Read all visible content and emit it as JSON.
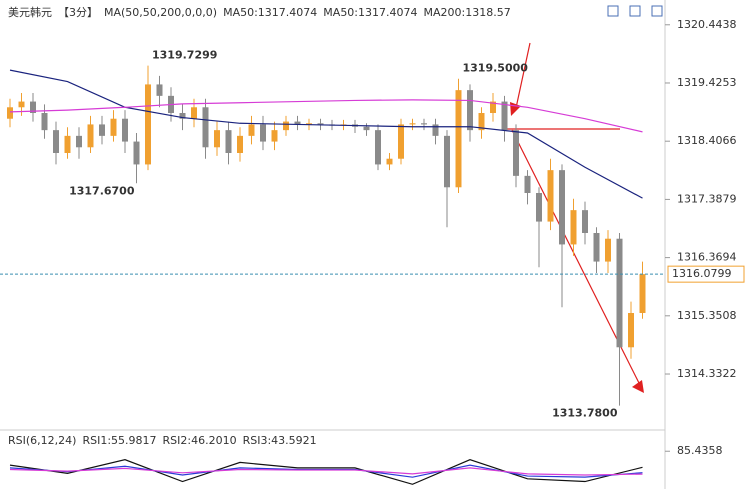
{
  "chart_data": {
    "type": "candlestick",
    "title": "美元韩元",
    "period": "【3分】",
    "indicator": "MA(50,50,200,0,0,0)",
    "legend": [
      {
        "text": "MA50:1317.4074",
        "color": "#1a237e"
      },
      {
        "text": "MA50:1317.4074",
        "color": "#1a237e"
      },
      {
        "text": "MA200:1318.57",
        "color": "#d63cd6"
      }
    ],
    "open": [
      1318.8,
      1319.0,
      1319.1,
      1318.9,
      1318.6,
      1318.2,
      1318.5,
      1318.3,
      1318.7,
      1318.5,
      1318.8,
      1318.4,
      1318.0,
      1319.4,
      1319.2,
      1318.9,
      1318.8,
      1319.0,
      1318.3,
      1318.6,
      1318.2,
      1318.5,
      1318.7,
      1318.4,
      1318.6,
      1318.75,
      1318.7,
      1318.72,
      1318.7,
      1318.68,
      1318.7,
      1318.66,
      1318.6,
      1318.0,
      1318.1,
      1318.7,
      1318.72,
      1318.7,
      1318.5,
      1317.6,
      1319.3,
      1318.6,
      1318.9,
      1319.1,
      1318.6,
      1317.8,
      1317.5,
      1317.0,
      1317.9,
      1316.6,
      1317.2,
      1316.8,
      1316.3,
      1316.7,
      1314.8,
      1315.4
    ],
    "high": [
      1319.15,
      1319.25,
      1319.25,
      1319.05,
      1318.75,
      1318.65,
      1318.65,
      1318.85,
      1318.85,
      1318.95,
      1318.95,
      1318.55,
      1319.7299,
      1319.55,
      1319.35,
      1319.05,
      1319.15,
      1319.15,
      1318.75,
      1318.75,
      1318.65,
      1318.85,
      1318.85,
      1318.75,
      1318.85,
      1318.85,
      1318.8,
      1318.8,
      1318.78,
      1318.78,
      1318.78,
      1318.72,
      1318.7,
      1318.2,
      1318.8,
      1318.8,
      1318.8,
      1318.8,
      1318.6,
      1319.5,
      1319.4,
      1319.0,
      1319.25,
      1319.2,
      1318.7,
      1317.9,
      1317.6,
      1318.1,
      1318.0,
      1317.4,
      1317.35,
      1316.9,
      1316.85,
      1316.8,
      1315.6,
      1316.3
    ],
    "low": [
      1318.65,
      1318.85,
      1318.75,
      1318.45,
      1318.0,
      1318.1,
      1318.1,
      1318.2,
      1318.35,
      1318.4,
      1318.2,
      1317.67,
      1317.9,
      1319.0,
      1318.75,
      1318.6,
      1318.65,
      1318.1,
      1318.15,
      1318.0,
      1318.05,
      1318.35,
      1318.25,
      1318.25,
      1318.5,
      1318.6,
      1318.6,
      1318.6,
      1318.6,
      1318.6,
      1318.55,
      1318.5,
      1317.9,
      1317.9,
      1318.0,
      1318.6,
      1318.6,
      1318.35,
      1316.9,
      1317.5,
      1318.4,
      1318.45,
      1318.75,
      1318.4,
      1317.6,
      1317.3,
      1316.2,
      1316.85,
      1315.5,
      1316.4,
      1316.6,
      1316.1,
      1316.1,
      1313.78,
      1314.6,
      1315.3
    ],
    "close": [
      1319.0,
      1319.1,
      1318.9,
      1318.6,
      1318.2,
      1318.5,
      1318.3,
      1318.7,
      1318.5,
      1318.8,
      1318.4,
      1318.0,
      1319.4,
      1319.2,
      1318.9,
      1318.8,
      1319.0,
      1318.3,
      1318.6,
      1318.2,
      1318.5,
      1318.7,
      1318.4,
      1318.6,
      1318.75,
      1318.7,
      1318.72,
      1318.7,
      1318.68,
      1318.7,
      1318.66,
      1318.6,
      1318.0,
      1318.1,
      1318.7,
      1318.72,
      1318.7,
      1318.5,
      1317.6,
      1319.3,
      1318.6,
      1318.9,
      1319.1,
      1318.6,
      1317.8,
      1317.5,
      1317.0,
      1317.9,
      1316.6,
      1317.2,
      1316.8,
      1316.3,
      1316.7,
      1314.8,
      1315.4,
      1316.08
    ],
    "up_color": "#f0a030",
    "down_color": "#8a8a8a",
    "lines": [
      {
        "name": "MA50",
        "color": "#1a237e",
        "x": [
          0,
          5,
          10,
          15,
          20,
          25,
          30,
          35,
          40,
          45,
          50,
          55
        ],
        "values": [
          1319.65,
          1319.45,
          1319.0,
          1318.82,
          1318.72,
          1318.7,
          1318.68,
          1318.66,
          1318.66,
          1318.55,
          1317.95,
          1317.41
        ]
      },
      {
        "name": "MA200",
        "color": "#d63cd6",
        "x": [
          0,
          5,
          10,
          15,
          20,
          25,
          30,
          35,
          40,
          45,
          50,
          55
        ],
        "values": [
          1318.92,
          1318.95,
          1319.0,
          1319.06,
          1319.08,
          1319.1,
          1319.12,
          1319.13,
          1319.12,
          1319.0,
          1318.8,
          1318.57
        ]
      }
    ],
    "annotations": [
      {
        "value": 1319.7299,
        "label": "1319.7299"
      },
      {
        "value": 1317.67,
        "label": "1317.6700"
      },
      {
        "value": 1319.5,
        "label": "1319.5000"
      },
      {
        "value": 1313.78,
        "label": "1313.7800"
      }
    ],
    "current_price": 1316.0799,
    "ylim": [
      1313.44,
      1320.79
    ],
    "yticks": [
      1320.4438,
      1319.4253,
      1318.4066,
      1317.3879,
      1316.3694,
      1315.3508,
      1314.3322
    ],
    "rsi": {
      "title": "RSI(6,12,24)",
      "ylim": [
        20,
        95
      ],
      "yticks": [
        85.4358
      ],
      "series": [
        {
          "name": "RSI1:55.9817",
          "color": "#111111",
          "x": [
            0,
            5,
            10,
            15,
            20,
            25,
            30,
            35,
            40,
            45,
            50,
            55
          ],
          "values": [
            60,
            45,
            70,
            30,
            65,
            55,
            55,
            25,
            70,
            35,
            30,
            55.9817
          ]
        },
        {
          "name": "RSI2:46.2010",
          "color": "#2a3cd6",
          "x": [
            0,
            5,
            10,
            15,
            20,
            25,
            30,
            35,
            40,
            45,
            50,
            55
          ],
          "values": [
            55,
            48,
            58,
            42,
            55,
            52,
            52,
            38,
            60,
            40,
            38,
            46.201
          ]
        },
        {
          "name": "RSI3:43.5921",
          "color": "#d63cd6",
          "x": [
            0,
            5,
            10,
            15,
            20,
            25,
            30,
            35,
            40,
            45,
            50,
            55
          ],
          "values": [
            52,
            49,
            54,
            46,
            52,
            51,
            51,
            44,
            55,
            44,
            42,
            43.5921
          ]
        }
      ]
    }
  }
}
